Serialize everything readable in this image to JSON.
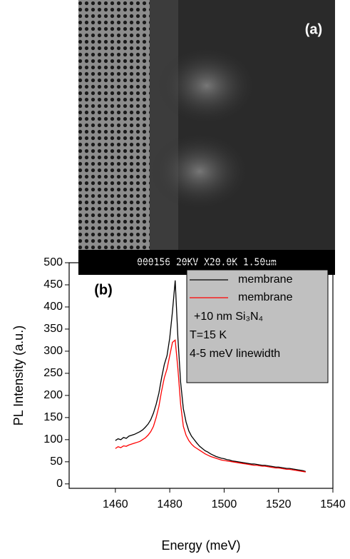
{
  "sem_image": {
    "label": "(a)",
    "banner_text": "000156 20KV X20.0K 1.50um"
  },
  "chart_data": {
    "type": "line",
    "panel_label": "(b)",
    "x_label": "Energy (meV)",
    "y_label": "PL Intensity (a.u.)",
    "x": [
      1460,
      1461,
      1462,
      1463,
      1464,
      1465,
      1466,
      1467,
      1468,
      1469,
      1470,
      1471,
      1472,
      1473,
      1474,
      1475,
      1476,
      1477,
      1478,
      1479,
      1480,
      1481,
      1482,
      1483,
      1484,
      1485,
      1486,
      1487,
      1488,
      1489,
      1490,
      1491,
      1492,
      1493,
      1494,
      1495,
      1496,
      1497,
      1498,
      1499,
      1500,
      1501,
      1502,
      1503,
      1504,
      1505,
      1506,
      1507,
      1508,
      1509,
      1510,
      1511,
      1512,
      1513,
      1514,
      1515,
      1516,
      1517,
      1518,
      1519,
      1520,
      1521,
      1522,
      1523,
      1524,
      1525,
      1526,
      1527,
      1528,
      1529,
      1530
    ],
    "series": [
      {
        "name": "membrane",
        "color": "#000000",
        "values": [
          98,
          102,
          100,
          105,
          103,
          108,
          110,
          112,
          115,
          118,
          122,
          128,
          135,
          145,
          160,
          180,
          205,
          240,
          270,
          290,
          330,
          390,
          460,
          330,
          230,
          170,
          140,
          120,
          108,
          100,
          92,
          85,
          80,
          75,
          72,
          68,
          65,
          62,
          60,
          58,
          57,
          55,
          54,
          52,
          51,
          50,
          49,
          48,
          47,
          46,
          45,
          45,
          44,
          43,
          42,
          42,
          41,
          40,
          39,
          38,
          38,
          37,
          36,
          35,
          35,
          34,
          33,
          32,
          31,
          30,
          28
        ]
      },
      {
        "name": "membrane",
        "color": "#ff0000",
        "values": [
          80,
          84,
          82,
          86,
          85,
          88,
          90,
          92,
          94,
          96,
          100,
          104,
          110,
          118,
          130,
          150,
          175,
          210,
          240,
          260,
          290,
          320,
          325,
          260,
          180,
          130,
          110,
          98,
          90,
          84,
          80,
          76,
          72,
          68,
          65,
          62,
          60,
          58,
          56,
          54,
          53,
          52,
          51,
          50,
          49,
          48,
          47,
          46,
          45,
          44,
          43,
          42,
          42,
          41,
          40,
          40,
          39,
          38,
          37,
          36,
          36,
          35,
          34,
          33,
          33,
          32,
          31,
          30,
          29,
          28,
          27
        ]
      }
    ],
    "annotations": [
      "+10 nm Si₃N₄",
      "T=15 K",
      "4-5 meV linewidth"
    ],
    "xlim": [
      1443,
      1540
    ],
    "xticks": [
      1460,
      1480,
      1500,
      1520,
      1540
    ],
    "ylim": [
      -10,
      500
    ],
    "yticks": [
      0,
      50,
      100,
      150,
      200,
      250,
      300,
      350,
      400,
      450,
      500
    ],
    "legend_position": "upper right",
    "legend_background": "#c0c0c0"
  }
}
